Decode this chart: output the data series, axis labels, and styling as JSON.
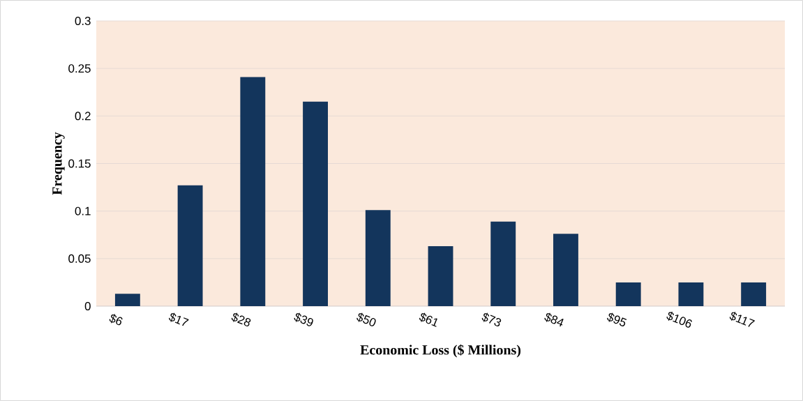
{
  "chart_data": {
    "type": "bar",
    "xlabel": "Economic Loss ($ Millions)",
    "ylabel": "Frequency",
    "categories": [
      "$6",
      "$17",
      "$28",
      "$39",
      "$50",
      "$61",
      "$73",
      "$84",
      "$95",
      "$106",
      "$117"
    ],
    "values": [
      0.013,
      0.127,
      0.241,
      0.215,
      0.101,
      0.063,
      0.089,
      0.076,
      0.025,
      0.025,
      0.025
    ],
    "color": "#13355c",
    "ylim": [
      0,
      0.3
    ],
    "yticks": [
      0,
      0.05,
      0.1,
      0.15,
      0.2,
      0.25,
      0.3
    ],
    "grid": "y"
  }
}
